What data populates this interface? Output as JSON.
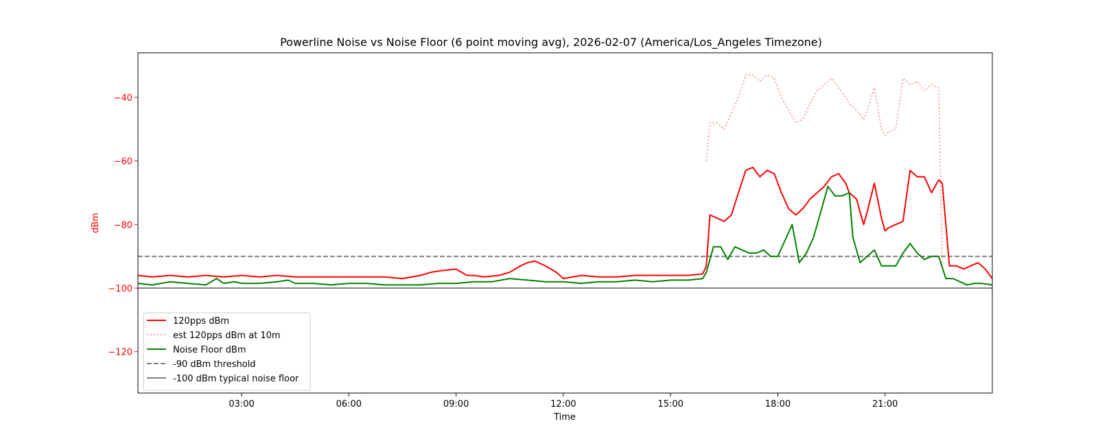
{
  "chart_data": {
    "type": "line",
    "title": "Powerline Noise vs Noise Floor (6 point moving avg), 2026-02-07 (America/Los_Angeles Timezone)",
    "xlabel": "Time",
    "ylabel": "dBm",
    "ylabel_color": "#ff0000",
    "x_unit": "hours",
    "xlim": [
      0.1,
      24.0
    ],
    "ylim": [
      -133,
      -26
    ],
    "x_ticks": [
      {
        "value": 3,
        "label": "03:00"
      },
      {
        "value": 6,
        "label": "06:00"
      },
      {
        "value": 9,
        "label": "09:00"
      },
      {
        "value": 12,
        "label": "12:00"
      },
      {
        "value": 15,
        "label": "15:00"
      },
      {
        "value": 18,
        "label": "18:00"
      },
      {
        "value": 21,
        "label": "21:00"
      }
    ],
    "y_ticks": [
      {
        "value": -40,
        "label": "−40"
      },
      {
        "value": -60,
        "label": "−60"
      },
      {
        "value": -80,
        "label": "−80"
      },
      {
        "value": -100,
        "label": "−100"
      },
      {
        "value": -120,
        "label": "−120"
      }
    ],
    "grid": false,
    "legend_position": "lower-left",
    "series": [
      {
        "name": "120pps dBm",
        "color": "#ff0000",
        "style": "solid",
        "x": [
          0.1,
          0.5,
          1.0,
          1.5,
          2.0,
          2.5,
          3.0,
          3.5,
          4.0,
          4.5,
          5.0,
          5.5,
          6.0,
          6.5,
          7.0,
          7.5,
          8.0,
          8.3,
          8.6,
          9.0,
          9.3,
          9.5,
          9.8,
          10.2,
          10.5,
          10.8,
          11.0,
          11.2,
          11.5,
          11.8,
          12.0,
          12.5,
          13.0,
          13.5,
          14.0,
          14.5,
          15.0,
          15.5,
          15.9,
          16.0,
          16.1,
          16.3,
          16.5,
          16.7,
          16.9,
          17.1,
          17.3,
          17.5,
          17.7,
          17.9,
          18.1,
          18.3,
          18.5,
          18.7,
          18.9,
          19.1,
          19.3,
          19.5,
          19.7,
          19.9,
          20.0,
          20.2,
          20.4,
          20.5,
          20.7,
          20.9,
          21.0,
          21.1,
          21.3,
          21.5,
          21.7,
          21.9,
          22.1,
          22.3,
          22.5,
          22.6,
          22.8,
          23.0,
          23.2,
          23.4,
          23.6,
          23.8,
          24.0
        ],
        "y": [
          -96,
          -96.5,
          -96,
          -96.5,
          -96,
          -96.5,
          -96,
          -96.5,
          -96,
          -96.5,
          -96.5,
          -96.5,
          -96.5,
          -96.5,
          -96.5,
          -97,
          -96,
          -95,
          -94.5,
          -94,
          -96,
          -96,
          -96.5,
          -96,
          -95,
          -93,
          -92,
          -91.5,
          -93,
          -95,
          -97,
          -96,
          -96.5,
          -96.5,
          -96,
          -96,
          -96,
          -96,
          -95.5,
          -93,
          -77,
          -78,
          -79,
          -77,
          -70,
          -63,
          -62,
          -65,
          -63,
          -64,
          -70,
          -75,
          -77,
          -75,
          -72,
          -70,
          -68,
          -65,
          -64,
          -67,
          -70,
          -72,
          -80,
          -76,
          -67,
          -78,
          -82,
          -81,
          -80,
          -79,
          -63,
          -65,
          -65,
          -70,
          -66,
          -67,
          -93,
          -93,
          -94,
          -93,
          -92,
          -94,
          -97
        ]
      },
      {
        "name": "est 120pps dBm at 10m",
        "color": "#ff8080",
        "style": "dotted",
        "x": [
          0.1,
          15.9,
          16.0,
          16.1,
          16.3,
          16.5,
          16.7,
          16.9,
          17.1,
          17.3,
          17.5,
          17.7,
          17.9,
          18.1,
          18.3,
          18.5,
          18.7,
          18.9,
          19.1,
          19.3,
          19.5,
          19.7,
          19.9,
          20.0,
          20.2,
          20.4,
          20.5,
          20.7,
          20.9,
          21.0,
          21.1,
          21.3,
          21.5,
          21.7,
          21.9,
          22.1,
          22.3,
          22.5,
          22.6
        ],
        "y": [
          null,
          null,
          -60,
          -48,
          -48,
          -50,
          -45,
          -40,
          -33,
          -33,
          -35,
          -33,
          -34,
          -40,
          -44,
          -48,
          -47,
          -42,
          -38,
          -36,
          -34,
          -37,
          -40,
          -42,
          -44,
          -47,
          -44,
          -37,
          -50,
          -52,
          -51,
          -50,
          -34,
          -36,
          -35,
          -38,
          -36,
          -37,
          -93
        ]
      },
      {
        "name": "Noise Floor dBm",
        "color": "#008000",
        "style": "solid",
        "x": [
          0.1,
          0.5,
          1.0,
          1.5,
          2.0,
          2.3,
          2.5,
          2.8,
          3.0,
          3.5,
          4.0,
          4.3,
          4.5,
          5.0,
          5.5,
          6.0,
          6.5,
          7.0,
          7.5,
          8.0,
          8.5,
          9.0,
          9.5,
          10.0,
          10.5,
          11.0,
          11.5,
          12.0,
          12.5,
          13.0,
          13.5,
          14.0,
          14.5,
          15.0,
          15.5,
          15.9,
          16.0,
          16.2,
          16.4,
          16.6,
          16.8,
          17.0,
          17.2,
          17.4,
          17.6,
          17.8,
          18.0,
          18.2,
          18.4,
          18.6,
          18.8,
          19.0,
          19.2,
          19.4,
          19.6,
          19.8,
          20.0,
          20.1,
          20.3,
          20.5,
          20.7,
          20.9,
          21.1,
          21.3,
          21.5,
          21.7,
          21.9,
          22.1,
          22.3,
          22.5,
          22.7,
          22.9,
          23.1,
          23.3,
          23.5,
          23.7,
          24.0
        ],
        "y": [
          -98.5,
          -99,
          -98,
          -98.5,
          -99,
          -97,
          -98.5,
          -98,
          -98.5,
          -98.5,
          -98,
          -97.5,
          -98.5,
          -98.5,
          -99,
          -98.5,
          -98.5,
          -99,
          -99,
          -99,
          -98.5,
          -98.5,
          -98,
          -98,
          -97,
          -97.5,
          -98,
          -98,
          -98.5,
          -98,
          -98,
          -97.5,
          -98,
          -97.5,
          -97.5,
          -97,
          -95,
          -87,
          -87,
          -91,
          -87,
          -88,
          -89,
          -89,
          -88,
          -90,
          -90,
          -85,
          -80,
          -92,
          -89,
          -84,
          -76,
          -68,
          -71,
          -71,
          -70,
          -84,
          -92,
          -90,
          -88,
          -93,
          -93,
          -93,
          -89,
          -86,
          -89,
          -91,
          -90,
          -90,
          -97,
          -97,
          -98,
          -99,
          -98.5,
          -98.5,
          -99
        ]
      },
      {
        "name": "-90 dBm threshold",
        "color": "#808080",
        "style": "dashed",
        "x": [
          0.1,
          24.0
        ],
        "y": [
          -90,
          -90
        ]
      },
      {
        "name": "-100 dBm typical noise floor",
        "color": "#808080",
        "style": "solid",
        "x": [
          0.1,
          24.0
        ],
        "y": [
          -100,
          -100
        ]
      }
    ]
  }
}
